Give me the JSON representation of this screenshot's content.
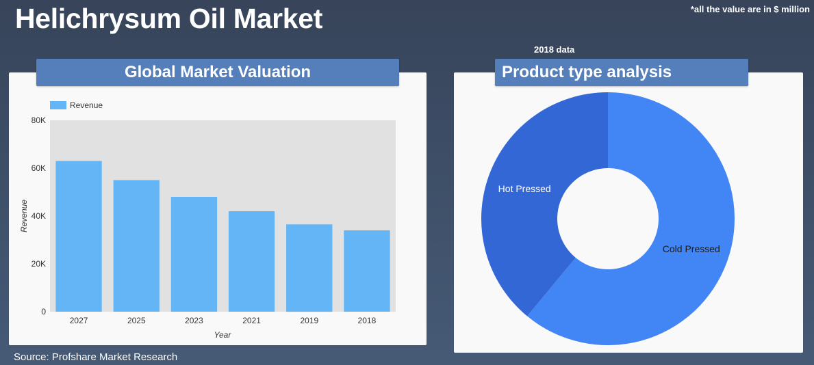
{
  "page": {
    "title": "Helichrysum Oil Market",
    "note": "*all the value are in $ million",
    "subnote": "2018 data",
    "source": "Source: Profshare Market Research"
  },
  "colors": {
    "background_top": "#37445a",
    "header": "#547fbb",
    "bar": "#64b5f6",
    "plot_bg": "#e1e1e1",
    "cold_pressed": "#4285f4",
    "hot_pressed": "#3367d6"
  },
  "chart_data": [
    {
      "type": "bar",
      "title": "Global Market Valuation",
      "legend": [
        "Revenue"
      ],
      "legend_position": "top-left",
      "xlabel": "Year",
      "ylabel": "Revenue",
      "categories": [
        "2027",
        "2025",
        "2023",
        "2021",
        "2019",
        "2018"
      ],
      "series": [
        {
          "name": "Revenue",
          "values": [
            63000,
            55000,
            48000,
            42000,
            36500,
            34000
          ]
        }
      ],
      "ylim": [
        0,
        80000
      ],
      "yticks": [
        0,
        20000,
        40000,
        60000,
        80000
      ],
      "ytick_labels": [
        "0",
        "20K",
        "40K",
        "60K",
        "80K"
      ],
      "grid": false
    },
    {
      "type": "pie",
      "style": "donut",
      "title": "Product type analysis",
      "labels": [
        "Cold Pressed",
        "Hot Pressed"
      ],
      "values": [
        61,
        39
      ]
    }
  ]
}
